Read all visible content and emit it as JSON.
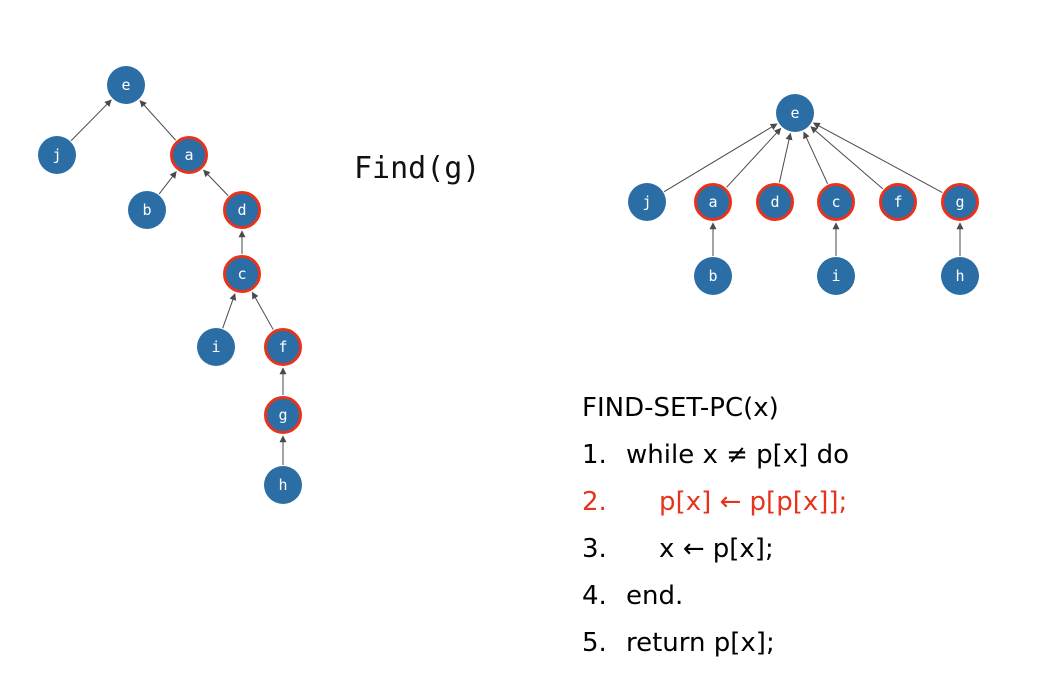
{
  "colors": {
    "node": "#2b6da5",
    "highlight": "#e8331c",
    "edge": "#4a4a4a"
  },
  "left_tree": {
    "nodes": [
      {
        "id": "e",
        "label": "e",
        "hl": false
      },
      {
        "id": "j",
        "label": "j",
        "hl": false
      },
      {
        "id": "a",
        "label": "a",
        "hl": true
      },
      {
        "id": "b",
        "label": "b",
        "hl": false
      },
      {
        "id": "d",
        "label": "d",
        "hl": true
      },
      {
        "id": "c",
        "label": "c",
        "hl": true
      },
      {
        "id": "i",
        "label": "i",
        "hl": false
      },
      {
        "id": "f",
        "label": "f",
        "hl": true
      },
      {
        "id": "g",
        "label": "g",
        "hl": true
      },
      {
        "id": "h",
        "label": "h",
        "hl": false
      }
    ],
    "edges": [
      [
        "j",
        "e"
      ],
      [
        "a",
        "e"
      ],
      [
        "b",
        "a"
      ],
      [
        "d",
        "a"
      ],
      [
        "c",
        "d"
      ],
      [
        "i",
        "c"
      ],
      [
        "f",
        "c"
      ],
      [
        "g",
        "f"
      ],
      [
        "h",
        "g"
      ]
    ]
  },
  "title": "Find(g)",
  "right_tree": {
    "nodes": [
      {
        "id": "e",
        "label": "e",
        "hl": false
      },
      {
        "id": "j",
        "label": "j",
        "hl": false
      },
      {
        "id": "a",
        "label": "a",
        "hl": true
      },
      {
        "id": "d",
        "label": "d",
        "hl": true
      },
      {
        "id": "c",
        "label": "c",
        "hl": true
      },
      {
        "id": "f",
        "label": "f",
        "hl": true
      },
      {
        "id": "g",
        "label": "g",
        "hl": true
      },
      {
        "id": "b",
        "label": "b",
        "hl": false
      },
      {
        "id": "i",
        "label": "i",
        "hl": false
      },
      {
        "id": "h",
        "label": "h",
        "hl": false
      }
    ],
    "edges": [
      [
        "j",
        "e"
      ],
      [
        "a",
        "e"
      ],
      [
        "d",
        "e"
      ],
      [
        "c",
        "e"
      ],
      [
        "f",
        "e"
      ],
      [
        "g",
        "e"
      ],
      [
        "b",
        "a"
      ],
      [
        "i",
        "c"
      ],
      [
        "h",
        "g"
      ]
    ]
  },
  "pseudocode": {
    "header": "FIND-SET-PC(x)",
    "lines": [
      {
        "num": "1.",
        "text": "while x ≠ p[x] do",
        "highlight": false
      },
      {
        "num": "2.",
        "text": "    p[x] ← p[p[x]];",
        "highlight": true
      },
      {
        "num": "3.",
        "text": "    x ← p[x];",
        "highlight": false
      },
      {
        "num": "4.",
        "text": "end.",
        "highlight": false
      },
      {
        "num": "5.",
        "text": "return p[x];",
        "highlight": false
      }
    ]
  }
}
